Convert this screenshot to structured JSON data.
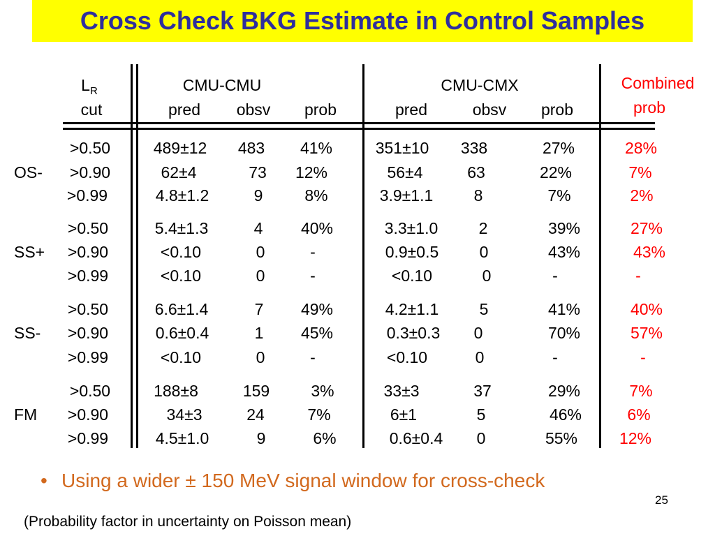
{
  "title": "Cross Check BKG Estimate in Control Samples",
  "header": {
    "lr_label": "L",
    "lr_sub": "R",
    "cut_label": "cut",
    "cmu_cmu": "CMU-CMU",
    "cmu_cmx": "CMU-CMX",
    "combined_line1": "Combined",
    "combined_line2": "prob",
    "col_pred": "pred",
    "col_obsv": "obsv",
    "col_prob": "prob"
  },
  "groups": [
    {
      "label": "OS-",
      "rows": [
        {
          "cut": ">0.50",
          "cc_pred": "489±12",
          "cc_obsv": "483",
          "cc_prob": "41%",
          "cx_pred": "351±10",
          "cx_obsv": "338",
          "cx_prob": "27%",
          "comb": "28%"
        },
        {
          "cut": ">0.90",
          "cc_pred": "62±4",
          "cc_obsv": "73",
          "cc_prob": "12%",
          "cx_pred": "56±4",
          "cx_obsv": "63",
          "cx_prob": "22%",
          "comb": "7%"
        },
        {
          "cut": ">0.99",
          "cc_pred": "4.8±1.2",
          "cc_obsv": "9",
          "cc_prob": "8%",
          "cx_pred": "3.9±1.1",
          "cx_obsv": "8",
          "cx_prob": "7%",
          "comb": "2%"
        }
      ]
    },
    {
      "label": "SS+",
      "rows": [
        {
          "cut": ">0.50",
          "cc_pred": "5.4±1.3",
          "cc_obsv": "4",
          "cc_prob": "40%",
          "cx_pred": "3.3±1.0",
          "cx_obsv": "2",
          "cx_prob": "39%",
          "comb": "27%"
        },
        {
          "cut": ">0.90",
          "cc_pred": "<0.10",
          "cc_obsv": "0",
          "cc_prob": "-",
          "cx_pred": "0.9±0.5",
          "cx_obsv": "0",
          "cx_prob": "43%",
          "comb": "43%"
        },
        {
          "cut": ">0.99",
          "cc_pred": "<0.10",
          "cc_obsv": "0",
          "cc_prob": "-",
          "cx_pred": "<0.10",
          "cx_obsv": "0",
          "cx_prob": "-",
          "comb": "-"
        }
      ]
    },
    {
      "label": "SS-",
      "rows": [
        {
          "cut": ">0.50",
          "cc_pred": "6.6±1.4",
          "cc_obsv": "7",
          "cc_prob": "49%",
          "cx_pred": "4.2±1.1",
          "cx_obsv": "5",
          "cx_prob": "41%",
          "comb": "40%"
        },
        {
          "cut": ">0.90",
          "cc_pred": "0.6±0.4",
          "cc_obsv": "1",
          "cc_prob": "45%",
          "cx_pred": "0.3±0.3",
          "cx_obsv": "0",
          "cx_prob": "70%",
          "comb": "57%"
        },
        {
          "cut": ">0.99",
          "cc_pred": "<0.10",
          "cc_obsv": "0",
          "cc_prob": "-",
          "cx_pred": "<0.10",
          "cx_obsv": "0",
          "cx_prob": "-",
          "comb": "-"
        }
      ]
    },
    {
      "label": "FM",
      "rows": [
        {
          "cut": ">0.50",
          "cc_pred": "188±8",
          "cc_obsv": "159",
          "cc_prob": "3%",
          "cx_pred": "33±3",
          "cx_obsv": "37",
          "cx_prob": "29%",
          "comb": "7%"
        },
        {
          "cut": ">0.90",
          "cc_pred": "34±3",
          "cc_obsv": "24",
          "cc_prob": "7%",
          "cx_pred": "6±1",
          "cx_obsv": "5",
          "cx_prob": "46%",
          "comb": "6%"
        },
        {
          "cut": ">0.99",
          "cc_pred": "4.5±1.0",
          "cc_obsv": "9",
          "cc_prob": "6%",
          "cx_pred": "0.6±0.4",
          "cx_obsv": "0",
          "cx_prob": "55%",
          "comb": "12%"
        }
      ]
    }
  ],
  "bullet": {
    "symbol": "•",
    "text": "Using  a wider ± 150 MeV signal window for cross-check"
  },
  "page_number": "25",
  "footnote": "(Probability factor in uncertainty on Poisson mean)",
  "colors": {
    "title_bg": "#ffff00",
    "title_text": "#2e2e9e",
    "combined": "#ff0000",
    "bullet": "#d2691e"
  }
}
